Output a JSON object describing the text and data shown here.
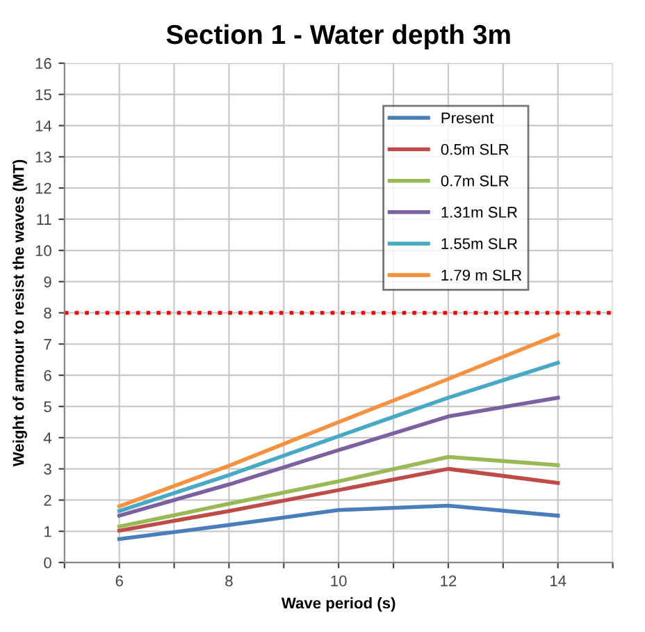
{
  "chart_data": {
    "type": "line",
    "title": "Section 1 - Water depth 3m",
    "xlabel": "Wave period (s)",
    "ylabel": "Weight of armour to resist the waves (MT)",
    "x": [
      6,
      8,
      10,
      12,
      14
    ],
    "series": [
      {
        "name": "Present",
        "color": "#4a7ebb",
        "values": [
          0.75,
          1.2,
          1.68,
          1.82,
          1.5
        ]
      },
      {
        "name": "0.5m SLR",
        "color": "#be4b48",
        "values": [
          1.02,
          1.65,
          2.32,
          3.0,
          2.55
        ]
      },
      {
        "name": "0.7m SLR",
        "color": "#98b954",
        "values": [
          1.15,
          1.88,
          2.6,
          3.38,
          3.12
        ]
      },
      {
        "name": "1.31m SLR",
        "color": "#7d60a0",
        "values": [
          1.5,
          2.5,
          3.6,
          4.68,
          5.28
        ]
      },
      {
        "name": "1.55m SLR",
        "color": "#46aac5",
        "values": [
          1.65,
          2.8,
          4.05,
          5.28,
          6.4
        ]
      },
      {
        "name": "1.79 m SLR",
        "color": "#f69240",
        "values": [
          1.8,
          3.1,
          4.5,
          5.88,
          7.3
        ]
      }
    ],
    "xlim": [
      5,
      15
    ],
    "xticks": [
      {
        "value": 5,
        "label": null
      },
      6,
      {
        "value": 7,
        "label": null
      },
      8,
      {
        "value": 9,
        "label": null
      },
      10,
      {
        "value": 11,
        "label": null
      },
      12,
      {
        "value": 13,
        "label": null
      },
      14,
      {
        "value": 15,
        "label": null
      }
    ],
    "ylim": [
      0,
      16
    ],
    "yticks": [
      0,
      1,
      2,
      3,
      4,
      5,
      6,
      7,
      8,
      9,
      10,
      11,
      12,
      13,
      14,
      15,
      16
    ],
    "ref_lines": [
      {
        "axis": "y",
        "value": 8,
        "label": null,
        "color": "#ff0000",
        "line_style": "dotted"
      }
    ],
    "grid": true,
    "legend": "top right",
    "marker": "none",
    "line_style": "solid"
  }
}
